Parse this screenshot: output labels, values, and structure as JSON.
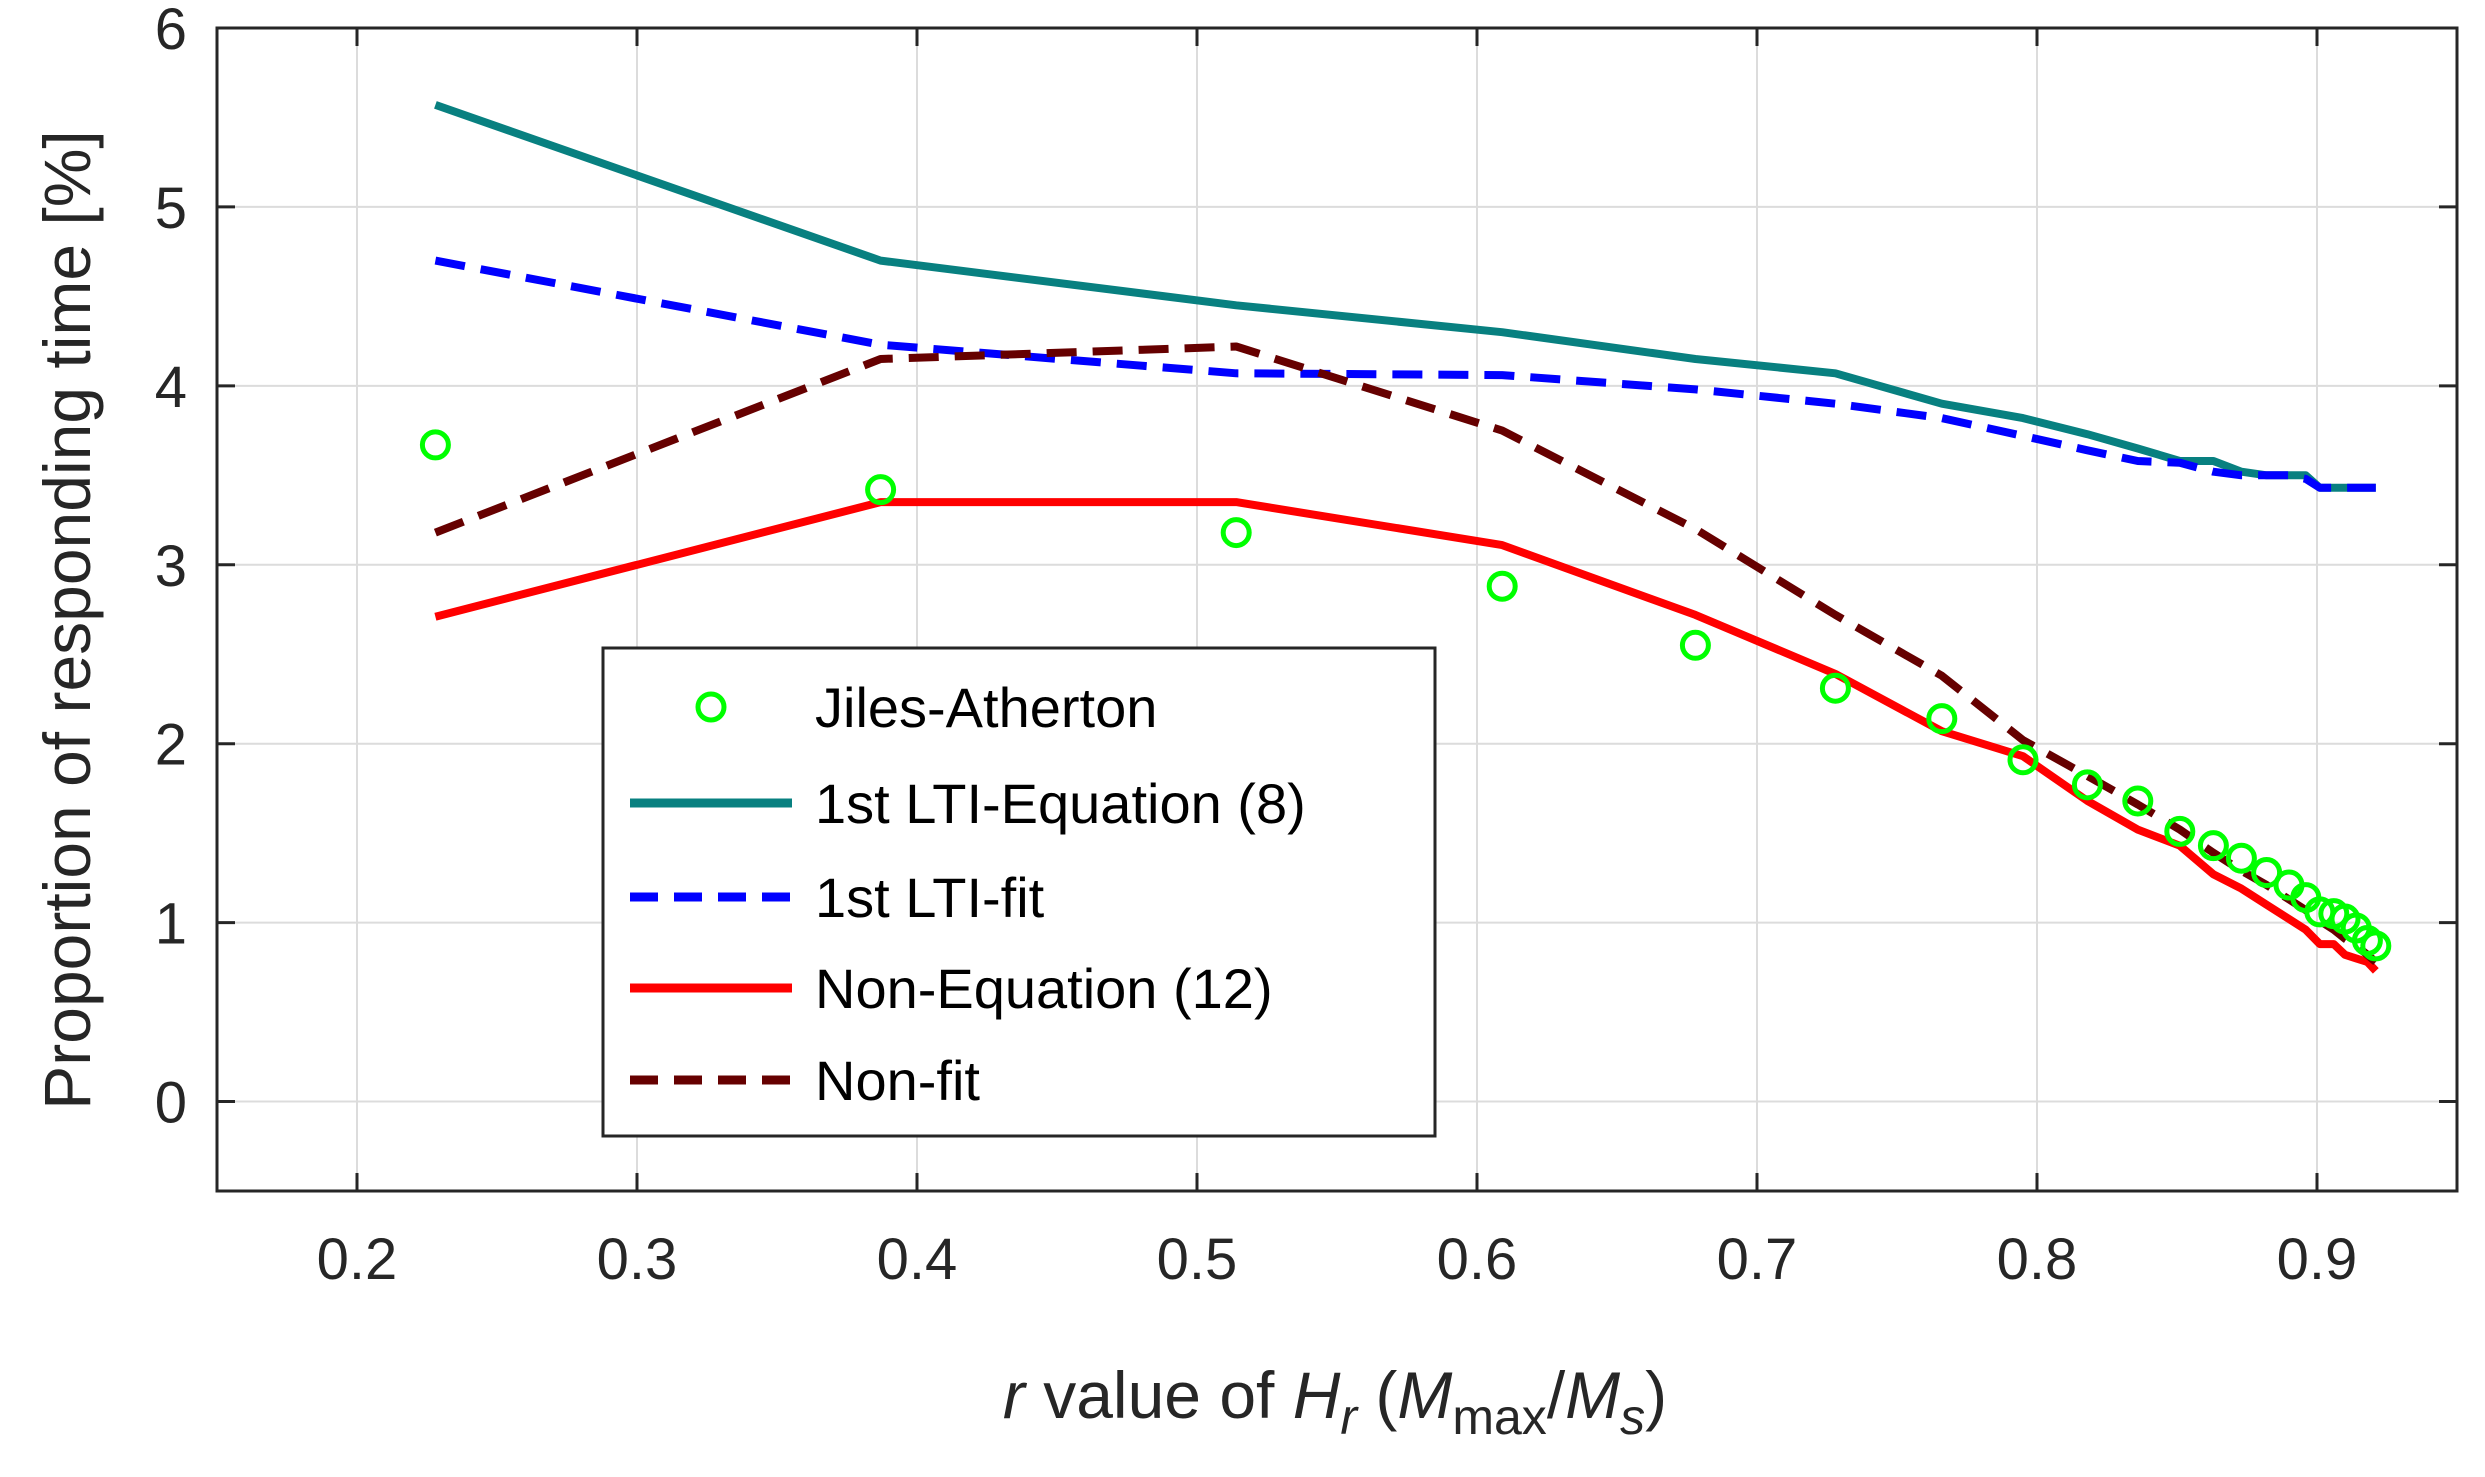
{
  "chart_data": {
    "type": "line",
    "xlabel": {
      "r": "r",
      "value_of": " value of ",
      "H": "H",
      "r_sub": "r",
      "open": " (",
      "M1": "M",
      "max_sub": "max",
      "slash": "/",
      "M2": "M",
      "s_sub": "s",
      "close": ")"
    },
    "ylabel": "Proportion of responding time [%]",
    "xlim": [
      0.15,
      0.95
    ],
    "ylim": [
      -0.5,
      6
    ],
    "xticks": [
      0.2,
      0.3,
      0.4,
      0.5,
      0.6,
      0.7,
      0.8,
      0.9
    ],
    "xtick_labels": [
      "0.2",
      "0.3",
      "0.4",
      "0.5",
      "0.6",
      "0.7",
      "0.8",
      "0.9"
    ],
    "yticks": [
      0,
      1,
      2,
      3,
      4,
      5,
      6
    ],
    "ytick_labels": [
      "0",
      "1",
      "2",
      "3",
      "4",
      "5",
      "6"
    ],
    "grid": true,
    "legend_position": "center-left",
    "series": [
      {
        "name": "Jiles-Atherton",
        "style": "markers",
        "color": "#00ff00",
        "x": [
          0.228,
          0.387,
          0.514,
          0.609,
          0.678,
          0.728,
          0.766,
          0.795,
          0.818,
          0.836,
          0.851,
          0.863,
          0.873,
          0.882,
          0.89,
          0.896,
          0.901,
          0.906,
          0.91,
          0.914,
          0.918,
          0.921
        ],
        "y": [
          3.67,
          3.42,
          3.18,
          2.88,
          2.55,
          2.31,
          2.14,
          1.91,
          1.77,
          1.68,
          1.51,
          1.43,
          1.36,
          1.28,
          1.21,
          1.14,
          1.06,
          1.05,
          1.02,
          0.97,
          0.9,
          0.87
        ]
      },
      {
        "name": "1st LTI-Equation (8)",
        "style": "solid",
        "color": "#088080",
        "x": [
          0.228,
          0.387,
          0.514,
          0.609,
          0.678,
          0.728,
          0.766,
          0.795,
          0.818,
          0.836,
          0.851,
          0.863,
          0.873,
          0.882,
          0.89,
          0.896,
          0.901,
          0.906,
          0.91,
          0.914,
          0.918,
          0.921
        ],
        "y": [
          5.57,
          4.7,
          4.45,
          4.3,
          4.15,
          4.07,
          3.9,
          3.82,
          3.73,
          3.65,
          3.58,
          3.58,
          3.52,
          3.5,
          3.5,
          3.5,
          3.43,
          3.43,
          3.43,
          3.43,
          3.43,
          3.43
        ]
      },
      {
        "name": "1st LTI-fit",
        "style": "dashed",
        "color": "#0000ff",
        "x": [
          0.228,
          0.387,
          0.514,
          0.609,
          0.678,
          0.728,
          0.766,
          0.795,
          0.818,
          0.836,
          0.851,
          0.863,
          0.873,
          0.882,
          0.89,
          0.896,
          0.901,
          0.906,
          0.91,
          0.914,
          0.918,
          0.921
        ],
        "y": [
          4.7,
          4.23,
          4.07,
          4.06,
          3.98,
          3.9,
          3.82,
          3.72,
          3.64,
          3.58,
          3.57,
          3.52,
          3.5,
          3.5,
          3.5,
          3.48,
          3.43,
          3.43,
          3.43,
          3.43,
          3.43,
          3.43
        ]
      },
      {
        "name": "Non-Equation (12)",
        "style": "solid",
        "color": "#ff0000",
        "x": [
          0.228,
          0.387,
          0.514,
          0.609,
          0.678,
          0.728,
          0.766,
          0.795,
          0.818,
          0.836,
          0.851,
          0.863,
          0.873,
          0.882,
          0.89,
          0.896,
          0.901,
          0.906,
          0.91,
          0.914,
          0.918,
          0.921
        ],
        "y": [
          2.71,
          3.35,
          3.35,
          3.11,
          2.72,
          2.39,
          2.07,
          1.93,
          1.68,
          1.52,
          1.43,
          1.27,
          1.19,
          1.1,
          1.02,
          0.96,
          0.88,
          0.88,
          0.82,
          0.8,
          0.78,
          0.73
        ]
      },
      {
        "name": "Non-fit",
        "style": "dashed",
        "color": "#660000",
        "x": [
          0.228,
          0.387,
          0.514,
          0.609,
          0.678,
          0.728,
          0.766,
          0.795,
          0.818,
          0.836,
          0.851,
          0.863,
          0.873,
          0.882,
          0.89,
          0.896,
          0.901,
          0.906,
          0.91,
          0.914,
          0.918,
          0.921
        ],
        "y": [
          3.18,
          4.15,
          4.22,
          3.75,
          3.2,
          2.72,
          2.38,
          2.02,
          1.82,
          1.66,
          1.52,
          1.39,
          1.29,
          1.21,
          1.13,
          1.07,
          1.01,
          0.96,
          0.91,
          0.87,
          0.82,
          0.78
        ]
      }
    ]
  }
}
